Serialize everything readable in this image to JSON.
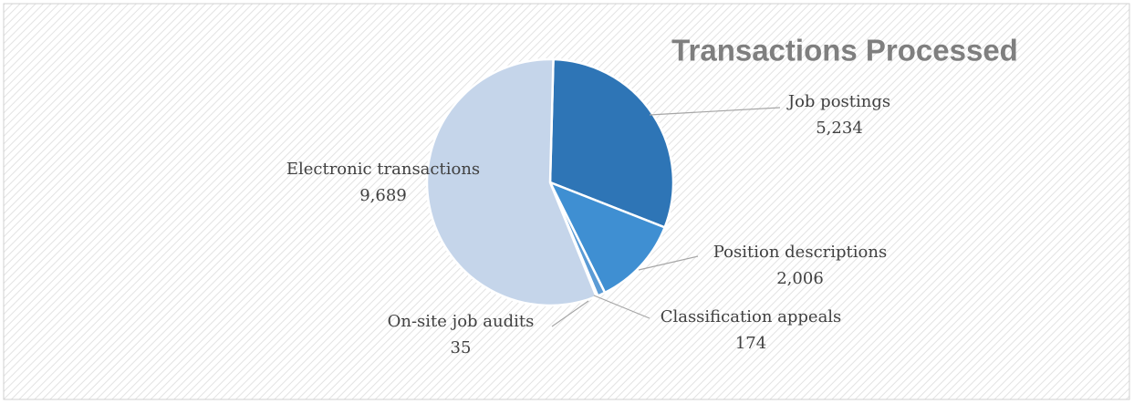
{
  "chart_data": {
    "type": "pie",
    "title": "Transactions Processed",
    "categories": [
      "Job postings",
      "Position descriptions",
      "Classification appeals",
      "On-site job audits",
      "Electronic transactions"
    ],
    "values": [
      5234,
      2006,
      174,
      35,
      9689
    ],
    "value_labels": [
      "5,234",
      "2,006",
      "174",
      "35",
      "9,689"
    ],
    "colors": [
      "#2e75b6",
      "#3f8fd2",
      "#5b9bd5",
      "#a9c4e4",
      "#c5d5ea"
    ]
  }
}
